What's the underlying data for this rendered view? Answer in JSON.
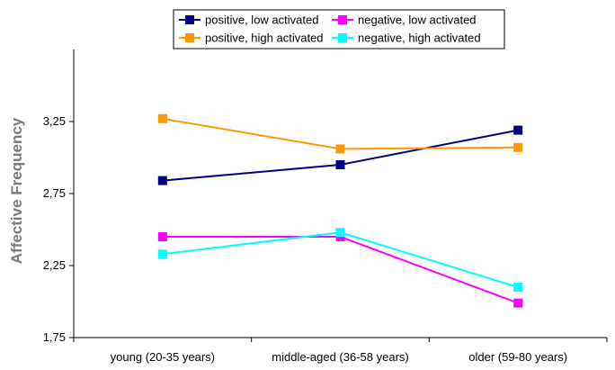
{
  "chart_data": {
    "type": "line",
    "title": "",
    "xlabel": "",
    "ylabel": "Affective Frequency",
    "categories": [
      "young (20-35 years)",
      "middle-aged (36-58 years)",
      "older (59-80 years)"
    ],
    "yticks": [
      "1,75",
      "2,25",
      "2,75",
      "3,25"
    ],
    "ylim": [
      1.75,
      3.75
    ],
    "grid": false,
    "legend_position": "top",
    "series": [
      {
        "name": "positive, low activated",
        "color": "#000080",
        "values": [
          2.84,
          2.95,
          3.19
        ]
      },
      {
        "name": "negative, low activated",
        "color": "#ff00ff",
        "values": [
          2.45,
          2.45,
          1.99
        ]
      },
      {
        "name": "positive, high activated",
        "color": "#ff9900",
        "values": [
          3.27,
          3.06,
          3.07
        ]
      },
      {
        "name": "negative, high activated",
        "color": "#00ffff",
        "values": [
          2.33,
          2.48,
          2.1
        ]
      }
    ]
  }
}
